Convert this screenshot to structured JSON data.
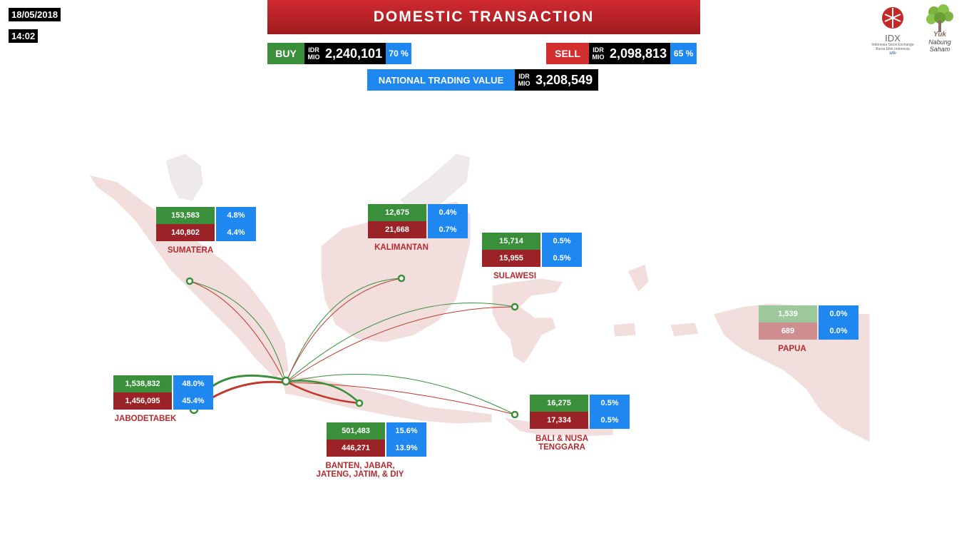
{
  "header": {
    "date": "18/05/2018",
    "time": "14:02",
    "title": "DOMESTIC TRANSACTION"
  },
  "summary": {
    "buy": {
      "label": "BUY",
      "unit_top": "IDR",
      "unit_bottom": "MIO",
      "value": "2,240,101",
      "percent": "70 %"
    },
    "sell": {
      "label": "SELL",
      "unit_top": "IDR",
      "unit_bottom": "MIO",
      "value": "2,098,813",
      "percent": "65 %"
    },
    "national": {
      "label": "NATIONAL TRADING VALUE",
      "unit_top": "IDR",
      "unit_bottom": "MIO",
      "value": "3,208,549"
    }
  },
  "logos": {
    "idx": {
      "name": "IDX",
      "sub1": "Indonesia Stock Exchange",
      "sub2": "Bursa Efek Indonesia",
      "sub3": "wfe"
    },
    "yuk": {
      "name": "Yuk",
      "sub1": "Nabung",
      "sub2": "Saham"
    }
  },
  "regions": {
    "sumatera": {
      "name": "SUMATERA",
      "buy": "153,583",
      "buy_pct": "4.8%",
      "sell": "140,802",
      "sell_pct": "4.4%"
    },
    "kalimantan": {
      "name": "KALIMANTAN",
      "buy": "12,675",
      "buy_pct": "0.4%",
      "sell": "21,668",
      "sell_pct": "0.7%"
    },
    "sulawesi": {
      "name": "SULAWESI",
      "buy": "15,714",
      "buy_pct": "0.5%",
      "sell": "15,955",
      "sell_pct": "0.5%"
    },
    "papua": {
      "name": "PAPUA",
      "buy": "1,539",
      "buy_pct": "0.0%",
      "sell": "689",
      "sell_pct": "0.0%"
    },
    "jabodetabek": {
      "name": "JABODETABEK",
      "buy": "1,538,832",
      "buy_pct": "48.0%",
      "sell": "1,456,095",
      "sell_pct": "45.4%"
    },
    "java": {
      "name_line1": "BANTEN, JABAR,",
      "name_line2": "JATENG, JATIM, & DIY",
      "buy": "501,483",
      "buy_pct": "15.6%",
      "sell": "446,271",
      "sell_pct": "13.9%"
    },
    "bali": {
      "name_line1": "BALI & NUSA",
      "name_line2": "TENGGARA",
      "buy": "16,275",
      "buy_pct": "0.5%",
      "sell": "17,334",
      "sell_pct": "0.5%"
    }
  },
  "colors": {
    "buy": "#3a8f3a",
    "sell": "#9b2226",
    "percent": "#1e87f0",
    "map_land": "#f3dede",
    "region_label": "#b52a2e"
  }
}
